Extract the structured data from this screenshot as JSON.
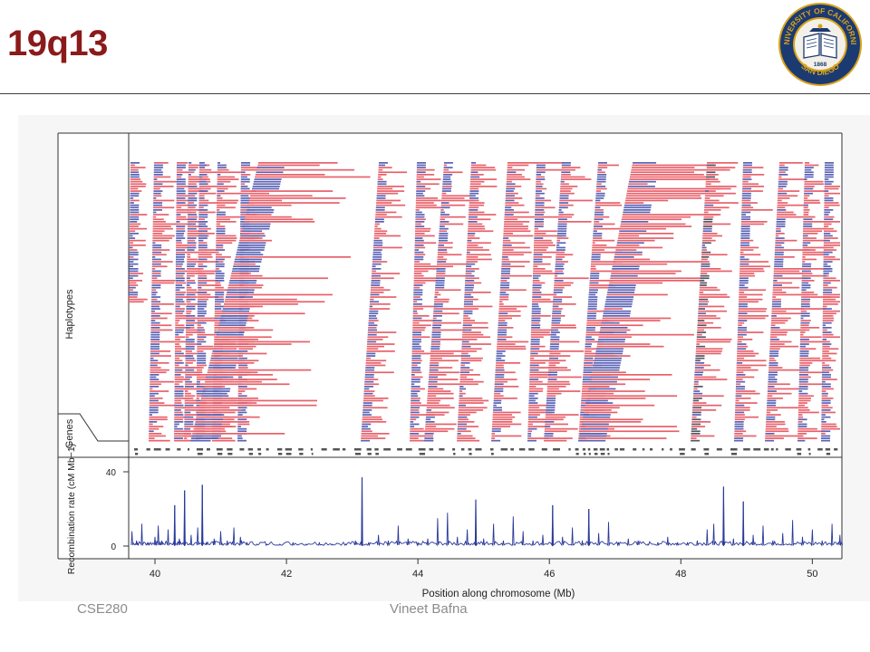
{
  "slide": {
    "title": "19q13",
    "footer_left": "CSE280",
    "footer_center": "Vineet Bafna",
    "title_color": "#8b1a1a"
  },
  "logo": {
    "text_top": "UNIVERSITY OF CALIFORNIA",
    "text_bottom": "SAN DIEGO",
    "year": "1868",
    "colors": {
      "navy": "#1c3a72",
      "gold": "#d8a21c"
    }
  },
  "chart_data": {
    "type": "line",
    "panels": [
      {
        "name": "haplotypes",
        "ylabel": "Haplotypes",
        "colors": {
          "red": "#e8606a",
          "blue": "#5a62b5",
          "dark": "#555566"
        }
      },
      {
        "name": "genes",
        "ylabel": "Genes"
      },
      {
        "name": "recombination",
        "ylabel": "Recombination rate (cM Mb−1)",
        "yticks": [
          0,
          40
        ],
        "ylim": [
          0,
          42
        ]
      }
    ],
    "xlabel": "Position along chromosome (Mb)",
    "xticks": [
      40,
      42,
      44,
      46,
      48,
      50
    ],
    "xlim": [
      39.6,
      50.45
    ],
    "series": [
      {
        "color": "#2a3a9a",
        "x": [
          39.65,
          39.72,
          39.8,
          39.9,
          40.0,
          40.05,
          40.1,
          40.2,
          40.3,
          40.37,
          40.45,
          40.55,
          40.65,
          40.72,
          40.78,
          40.9,
          41.0,
          41.1,
          41.2,
          41.3,
          41.4,
          41.55,
          41.7,
          41.9,
          42.1,
          42.3,
          42.5,
          42.7,
          42.9,
          43.05,
          43.15,
          43.25,
          43.4,
          43.55,
          43.7,
          43.85,
          44.0,
          44.15,
          44.3,
          44.45,
          44.6,
          44.75,
          44.88,
          45.0,
          45.15,
          45.3,
          45.45,
          45.6,
          45.75,
          45.9,
          46.05,
          46.2,
          46.35,
          46.5,
          46.6,
          46.75,
          46.9,
          47.05,
          47.2,
          47.35,
          47.5,
          47.65,
          47.8,
          47.95,
          48.1,
          48.25,
          48.4,
          48.5,
          48.65,
          48.8,
          48.95,
          49.1,
          49.25,
          49.4,
          49.55,
          49.7,
          49.85,
          50.0,
          50.15,
          50.3,
          50.42
        ],
        "y": [
          8,
          3,
          12,
          2,
          5,
          11,
          3,
          9,
          22,
          4,
          30,
          6,
          10,
          33,
          2,
          4,
          8,
          3,
          10,
          5,
          2,
          1,
          1,
          1,
          2,
          1,
          2,
          1,
          1,
          3,
          37,
          2,
          6,
          3,
          11,
          4,
          2,
          4,
          15,
          18,
          5,
          9,
          25,
          4,
          12,
          3,
          16,
          8,
          3,
          6,
          22,
          5,
          10,
          3,
          20,
          7,
          13,
          2,
          4,
          3,
          1,
          2,
          5,
          2,
          2,
          3,
          9,
          12,
          32,
          4,
          24,
          6,
          11,
          3,
          7,
          14,
          5,
          9,
          3,
          12,
          6
        ]
      }
    ]
  }
}
